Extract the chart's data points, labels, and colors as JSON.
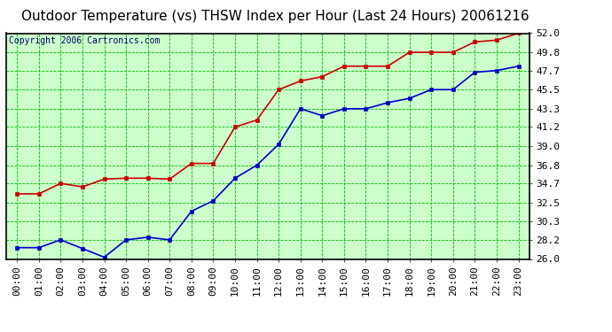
{
  "title": "Outdoor Temperature (vs) THSW Index per Hour (Last 24 Hours) 20061216",
  "copyright": "Copyright 2006 Cartronics.com",
  "hours": [
    "00:00",
    "01:00",
    "02:00",
    "03:00",
    "04:00",
    "05:00",
    "06:00",
    "07:00",
    "08:00",
    "09:00",
    "10:00",
    "11:00",
    "12:00",
    "13:00",
    "14:00",
    "15:00",
    "16:00",
    "17:00",
    "18:00",
    "19:00",
    "20:00",
    "21:00",
    "22:00",
    "23:00"
  ],
  "red_data": [
    33.5,
    33.5,
    34.7,
    34.3,
    35.2,
    35.3,
    35.3,
    35.2,
    37.0,
    37.0,
    41.2,
    42.0,
    45.5,
    46.5,
    47.0,
    48.2,
    48.2,
    48.2,
    49.8,
    49.8,
    49.8,
    51.0,
    51.2,
    52.0
  ],
  "blue_data": [
    27.3,
    27.3,
    28.2,
    27.2,
    26.2,
    28.2,
    28.5,
    28.2,
    31.5,
    32.7,
    35.3,
    36.8,
    39.2,
    43.3,
    42.5,
    43.3,
    43.3,
    44.0,
    44.5,
    45.5,
    45.5,
    47.5,
    47.7,
    48.2
  ],
  "ylim": [
    26.0,
    52.0
  ],
  "yticks": [
    26.0,
    28.2,
    30.3,
    32.5,
    34.7,
    36.8,
    39.0,
    41.2,
    43.3,
    45.5,
    47.7,
    49.8,
    52.0
  ],
  "bg_color": "#ccffcc",
  "grid_color": "#00bb00",
  "red_color": "#cc0000",
  "blue_color": "#0000cc",
  "title_color": "#000000",
  "border_color": "#000000",
  "copyright_color": "#000066",
  "outer_bg": "#ffffff",
  "title_fontsize": 11,
  "tick_fontsize": 8,
  "copyright_fontsize": 7,
  "marker_size": 3,
  "line_width": 1.2
}
